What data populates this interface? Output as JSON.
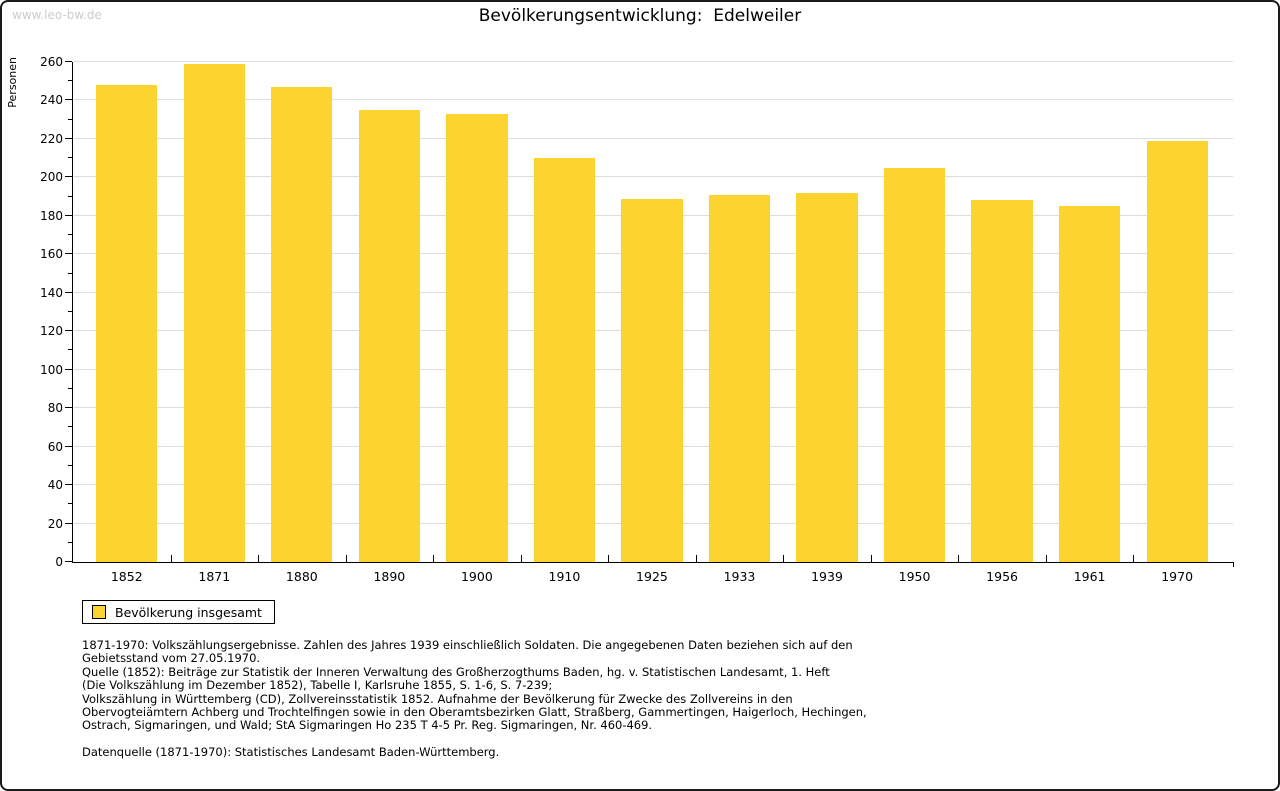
{
  "watermark": "www.leo-bw.de",
  "title": "Bevölkerungsentwicklung:  Edelweiler",
  "legend": {
    "label": "Bevölkerung insgesamt"
  },
  "colors": {
    "bar": "#FCD32F",
    "grid": "#DDDDDD",
    "axis": "#000000",
    "watermark": "#CCCCCC"
  },
  "chart_data": {
    "type": "bar",
    "title": "Bevölkerungsentwicklung: Edelweiler",
    "xlabel": "",
    "ylabel": "Personen",
    "categories": [
      "1852",
      "1871",
      "1880",
      "1890",
      "1900",
      "1910",
      "1925",
      "1933",
      "1939",
      "1950",
      "1956",
      "1961",
      "1970"
    ],
    "series": [
      {
        "name": "Bevölkerung insgesamt",
        "values": [
          248,
          259,
          247,
          235,
          233,
          210,
          189,
          191,
          192,
          205,
          188,
          185,
          219
        ]
      }
    ],
    "ylim": [
      0,
      260
    ],
    "y_major_step": 20,
    "y_minor_step": 10,
    "grid": true,
    "legend_position": "bottom-left",
    "bar_color": "#FCD32F"
  },
  "footnotes": {
    "lines": [
      "1871-1970: Volkszählungsergebnisse. Zahlen des Jahres 1939 einschließlich Soldaten. Die angegebenen Daten beziehen sich auf den",
      "Gebietsstand vom 27.05.1970.",
      "Quelle (1852): Beiträge zur Statistik der Inneren Verwaltung des Großherzogthums Baden, hg. v. Statistischen Landesamt, 1. Heft",
      "(Die Volkszählung im Dezember 1852), Tabelle I, Karlsruhe 1855, S. 1-6, S. 7-239;",
      "Volkszählung in Württemberg (CD), Zollvereinsstatistik 1852. Aufnahme der Bevölkerung für Zwecke des Zollvereins in den",
      "Obervogteiämtern Achberg und Trochtelfingen sowie in den Oberamtsbezirken Glatt, Straßberg, Gammertingen, Haigerloch, Hechingen,",
      "Ostrach, Sigmaringen, und Wald; StA Sigmaringen Ho 235 T 4-5 Pr. Reg. Sigmaringen, Nr. 460-469."
    ],
    "datasource": "Datenquelle (1871-1970): Statistisches Landesamt Baden-Württemberg."
  }
}
